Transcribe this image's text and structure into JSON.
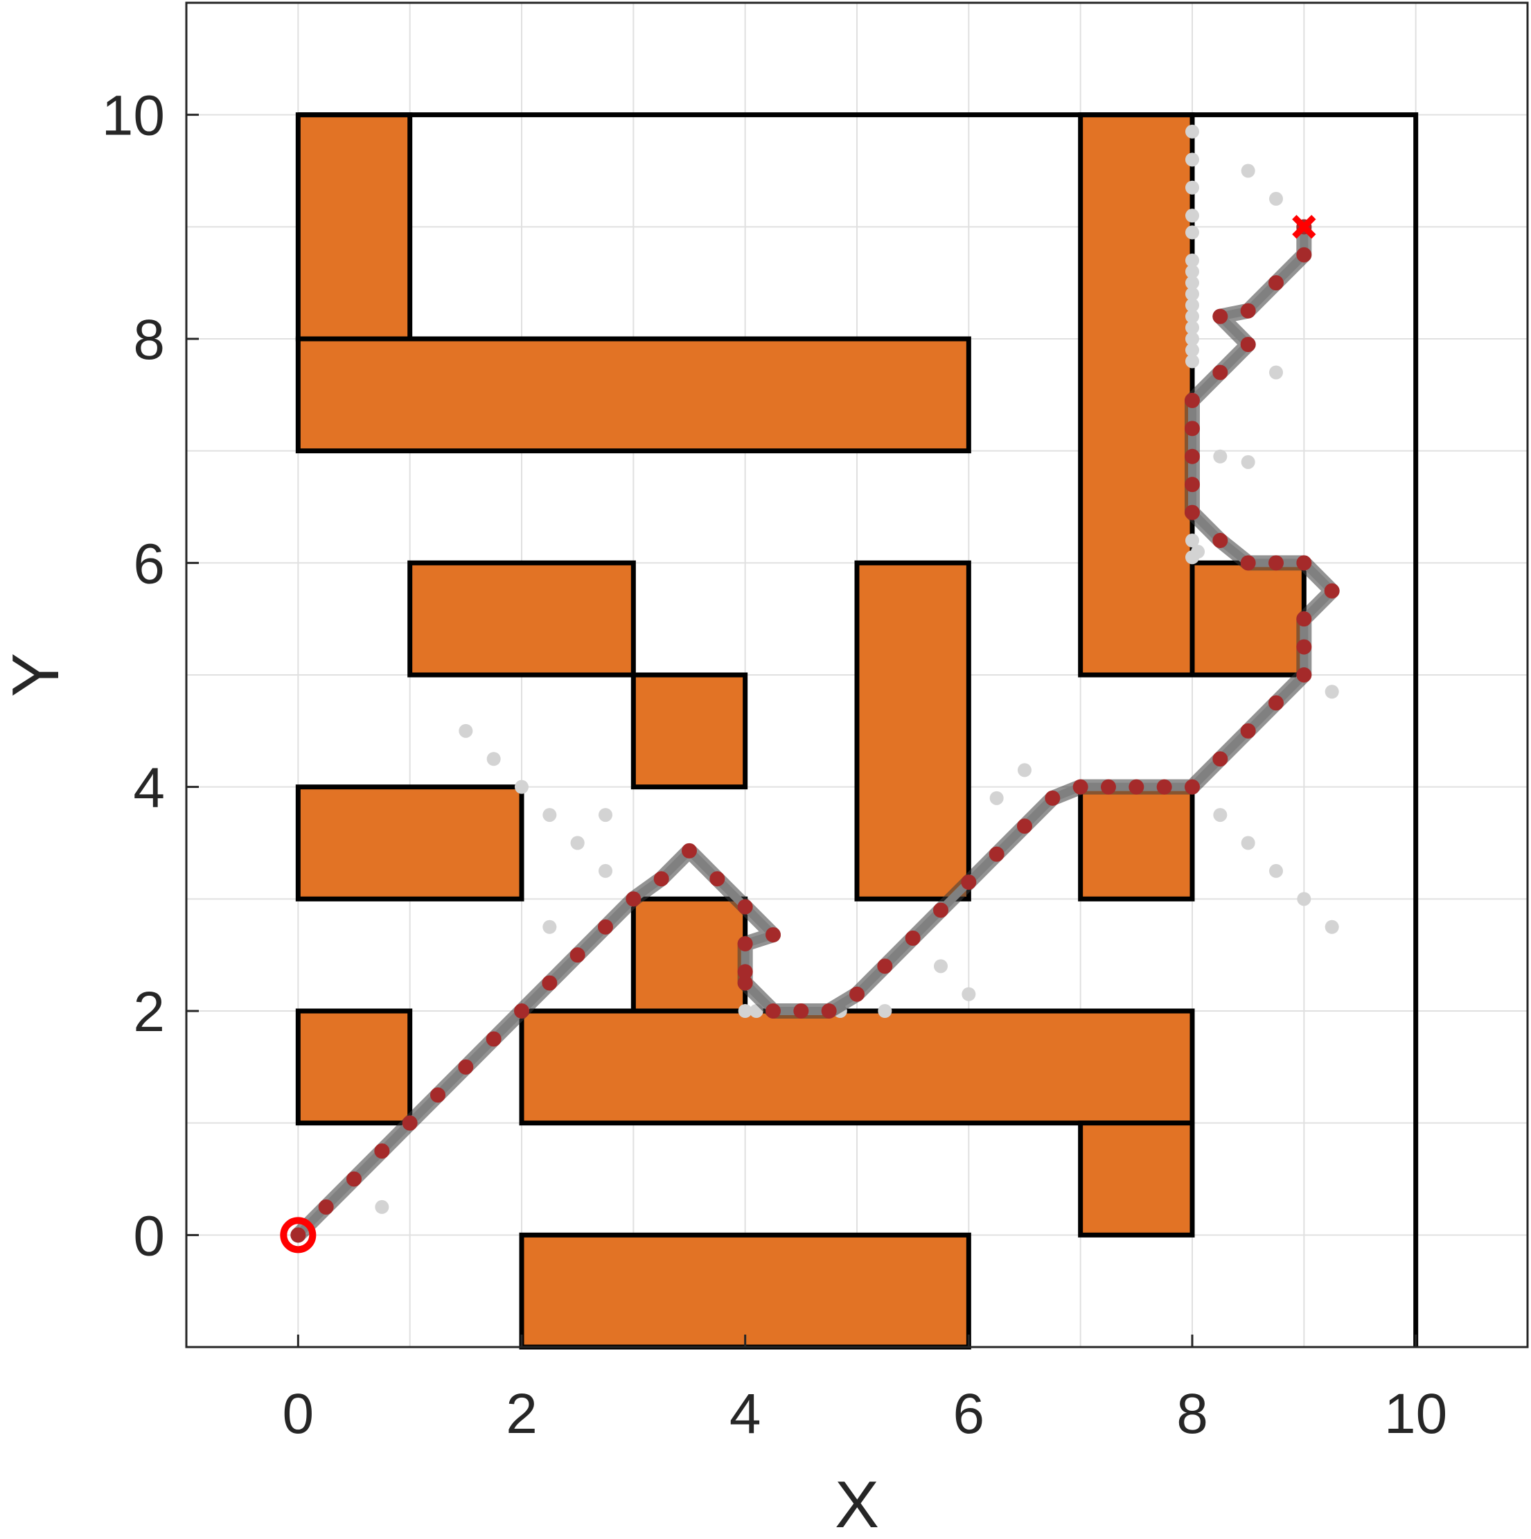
{
  "chart_data": {
    "type": "scatter",
    "title": "",
    "xlabel": "X",
    "ylabel": "Y",
    "xlim": [
      -1,
      11
    ],
    "ylim": [
      -1,
      11
    ],
    "xticks": [
      "0",
      "2",
      "4",
      "6",
      "8",
      "10"
    ],
    "yticks": [
      "0",
      "2",
      "4",
      "6",
      "8",
      "10"
    ],
    "grid": true,
    "colors": {
      "obstacle_fill": "#E27325",
      "obstacle_edge": "#000000",
      "boundary": "#000000",
      "path_line": "#808080",
      "path_point": "#A52A2A",
      "explored_point": "#D3D3D3",
      "start_marker": "#FF0000",
      "goal_marker": "#FF0000",
      "grid": "#E0E0E0"
    },
    "boundary": [
      [
        0,
        10
      ],
      [
        10,
        10
      ],
      [
        10,
        -1
      ]
    ],
    "obstacles": [
      [
        0,
        8,
        1,
        10
      ],
      [
        0,
        7,
        6,
        8
      ],
      [
        1,
        5,
        3,
        6
      ],
      [
        3,
        4,
        4,
        5
      ],
      [
        0,
        3,
        2,
        4
      ],
      [
        3,
        2,
        4,
        3
      ],
      [
        0,
        1,
        1,
        2
      ],
      [
        2,
        1,
        8,
        2
      ],
      [
        5,
        3,
        6,
        6
      ],
      [
        7,
        5,
        8,
        10
      ],
      [
        8,
        5,
        9,
        6
      ],
      [
        7,
        3,
        8,
        4
      ],
      [
        7,
        0,
        8,
        1
      ],
      [
        2,
        -1,
        6,
        0
      ]
    ],
    "start": [
      0,
      0
    ],
    "goal": [
      9,
      9
    ],
    "path": [
      [
        0,
        0
      ],
      [
        0.25,
        0.25
      ],
      [
        0.5,
        0.5
      ],
      [
        0.75,
        0.75
      ],
      [
        1,
        1
      ],
      [
        1.25,
        1.25
      ],
      [
        1.5,
        1.5
      ],
      [
        1.75,
        1.75
      ],
      [
        2,
        2
      ],
      [
        2.25,
        2.25
      ],
      [
        2.5,
        2.5
      ],
      [
        2.75,
        2.75
      ],
      [
        3,
        3
      ],
      [
        3.25,
        3.18
      ],
      [
        3.5,
        3.43
      ],
      [
        3.75,
        3.18
      ],
      [
        4,
        2.93
      ],
      [
        4.25,
        2.68
      ],
      [
        4,
        2.6
      ],
      [
        4,
        2.35
      ],
      [
        4,
        2.25
      ],
      [
        4.25,
        2
      ],
      [
        4.5,
        2
      ],
      [
        4.75,
        2
      ],
      [
        5,
        2.15
      ],
      [
        5.25,
        2.4
      ],
      [
        5.5,
        2.65
      ],
      [
        5.75,
        2.9
      ],
      [
        6,
        3.15
      ],
      [
        6.25,
        3.4
      ],
      [
        6.5,
        3.65
      ],
      [
        6.75,
        3.9
      ],
      [
        7,
        4
      ],
      [
        7.25,
        4
      ],
      [
        7.5,
        4
      ],
      [
        7.75,
        4
      ],
      [
        8,
        4
      ],
      [
        8.25,
        4.25
      ],
      [
        8.5,
        4.5
      ],
      [
        8.75,
        4.75
      ],
      [
        9,
        5
      ],
      [
        9,
        5.25
      ],
      [
        9,
        5.5
      ],
      [
        9.25,
        5.75
      ],
      [
        9,
        6
      ],
      [
        8.75,
        6
      ],
      [
        8.5,
        6
      ],
      [
        8.25,
        6.2
      ],
      [
        8,
        6.45
      ],
      [
        8,
        6.7
      ],
      [
        8,
        6.95
      ],
      [
        8,
        7.2
      ],
      [
        8,
        7.45
      ],
      [
        8.25,
        7.7
      ],
      [
        8.5,
        7.95
      ],
      [
        8.25,
        8.2
      ],
      [
        8.5,
        8.25
      ],
      [
        8.75,
        8.5
      ],
      [
        9,
        8.75
      ],
      [
        9,
        9
      ]
    ],
    "explored": [
      [
        0.75,
        0.25
      ],
      [
        0.5,
        0.5
      ],
      [
        1.5,
        4.5
      ],
      [
        1.75,
        4.25
      ],
      [
        2,
        4
      ],
      [
        2.25,
        3.75
      ],
      [
        2.5,
        3.5
      ],
      [
        2.75,
        3.25
      ],
      [
        2.75,
        3.75
      ],
      [
        2.5,
        3.5
      ],
      [
        2.25,
        2.75
      ],
      [
        2.5,
        2.5
      ],
      [
        4,
        2
      ],
      [
        4.1,
        2
      ],
      [
        4.25,
        2
      ],
      [
        4.75,
        2
      ],
      [
        4.85,
        2
      ],
      [
        5.25,
        2
      ],
      [
        5.75,
        2.4
      ],
      [
        6,
        2.15
      ],
      [
        5.5,
        2.65
      ],
      [
        6.25,
        3.9
      ],
      [
        6.5,
        4.15
      ],
      [
        6.5,
        3.65
      ],
      [
        8.25,
        3.75
      ],
      [
        8.5,
        3.5
      ],
      [
        8.75,
        3.25
      ],
      [
        9,
        3
      ],
      [
        9.25,
        2.75
      ],
      [
        9.25,
        4.85
      ],
      [
        9,
        5
      ],
      [
        8,
        9.85
      ],
      [
        8,
        9.6
      ],
      [
        8,
        9.35
      ],
      [
        8,
        9.1
      ],
      [
        8,
        8.95
      ],
      [
        8,
        8.7
      ],
      [
        8,
        8.6
      ],
      [
        8,
        8.5
      ],
      [
        8,
        8.4
      ],
      [
        8,
        8.3
      ],
      [
        8,
        8.2
      ],
      [
        8,
        8.1
      ],
      [
        8,
        8.0
      ],
      [
        8,
        7.9
      ],
      [
        8,
        7.8
      ],
      [
        8,
        6.2
      ],
      [
        8,
        6.05
      ],
      [
        8.05,
        6.1
      ],
      [
        8.5,
        9.5
      ],
      [
        8.75,
        9.25
      ],
      [
        9,
        9
      ],
      [
        8.5,
        7.95
      ],
      [
        8.75,
        7.7
      ],
      [
        8.25,
        6.95
      ],
      [
        8.5,
        6.9
      ],
      [
        8,
        7.2
      ]
    ]
  }
}
